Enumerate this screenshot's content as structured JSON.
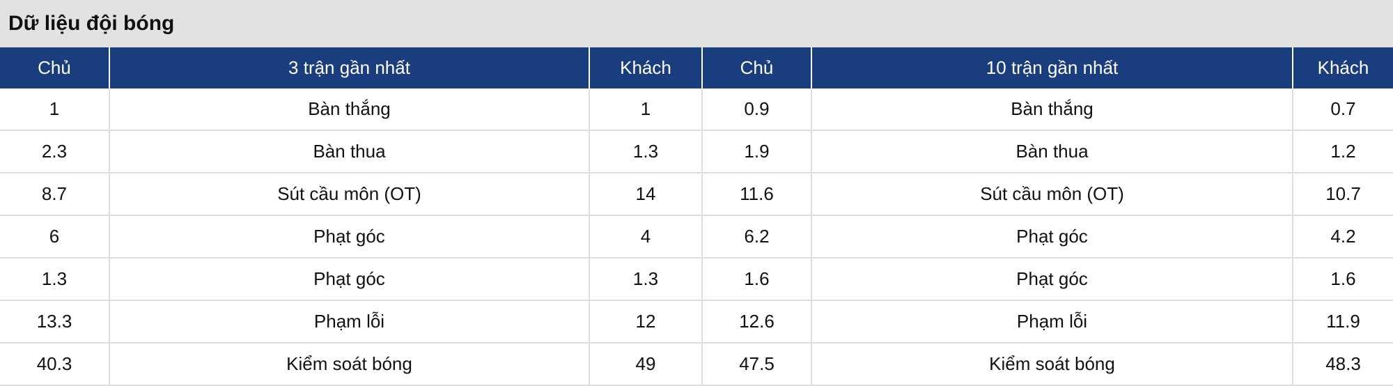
{
  "title": "Dữ liệu đội bóng",
  "headers": [
    "Chủ",
    "3 trận gần nhất",
    "Khách",
    "Chủ",
    "10 trận gần nhất",
    "Khách"
  ],
  "rows": [
    [
      "1",
      "Bàn thắng",
      "1",
      "0.9",
      "Bàn thắng",
      "0.7"
    ],
    [
      "2.3",
      "Bàn thua",
      "1.3",
      "1.9",
      "Bàn thua",
      "1.2"
    ],
    [
      "8.7",
      "Sút cầu môn (OT)",
      "14",
      "11.6",
      "Sút cầu môn (OT)",
      "10.7"
    ],
    [
      "6",
      "Phạt góc",
      "4",
      "6.2",
      "Phạt góc",
      "4.2"
    ],
    [
      "1.3",
      "Phạt góc",
      "1.3",
      "1.6",
      "Phạt góc",
      "1.6"
    ],
    [
      "13.3",
      "Phạm lỗi",
      "12",
      "12.6",
      "Phạm lỗi",
      "11.9"
    ],
    [
      "40.3",
      "Kiểm soát bóng",
      "49",
      "47.5",
      "Kiểm soát bóng",
      "48.3"
    ]
  ],
  "colors": {
    "header_bg": "#1a3d7e",
    "title_bg": "#e2e2e2"
  }
}
